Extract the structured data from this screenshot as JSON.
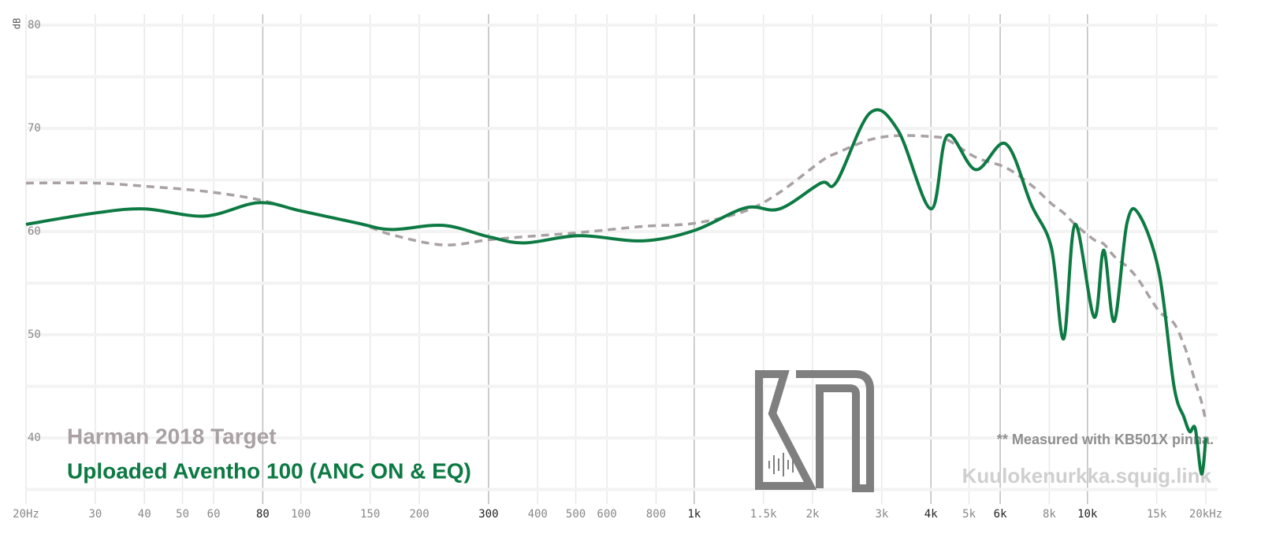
{
  "chart_data": {
    "type": "line",
    "y_label": "dB",
    "log_x": true,
    "xlim": [
      20,
      20000
    ],
    "ylim": [
      34,
      80.5
    ],
    "xticks": [
      {
        "value": 20,
        "label": "20Hz"
      },
      30,
      40,
      50,
      60,
      80,
      100,
      150,
      200,
      300,
      400,
      500,
      600,
      800,
      {
        "value": 1000,
        "label": "1k"
      },
      {
        "value": 1500,
        "label": "1.5k"
      },
      {
        "value": 2000,
        "label": "2k"
      },
      {
        "value": 3000,
        "label": "3k"
      },
      {
        "value": 4000,
        "label": "4k"
      },
      {
        "value": 5000,
        "label": "5k"
      },
      {
        "value": 6000,
        "label": "6k"
      },
      {
        "value": 8000,
        "label": "8k"
      },
      {
        "value": 10000,
        "label": "10k"
      },
      {
        "value": 15000,
        "label": "15k"
      },
      {
        "value": 20000,
        "label": "20kHz"
      }
    ],
    "xticks_emphasized": [
      80,
      300,
      1000,
      4000,
      6000,
      10000
    ],
    "yticks": [
      40,
      50,
      60,
      70,
      80
    ],
    "ygrid_minor": [
      35,
      45,
      55,
      65,
      75
    ],
    "x": [
      20,
      30,
      40,
      57,
      78,
      100,
      140,
      170,
      230,
      300,
      370,
      510,
      740,
      1000,
      1350,
      1650,
      2100,
      2300,
      2800,
      3300,
      4000,
      4400,
      5200,
      6200,
      7200,
      8100,
      8700,
      9300,
      10400,
      11000,
      11700,
      12600,
      13500,
      15200,
      16600,
      17600,
      18200,
      18800,
      19500,
      20000
    ],
    "series": [
      {
        "name": "Harman 2018 Target",
        "color": "#a9a1a3",
        "dashed": true,
        "values": [
          64.7,
          64.7,
          64.4,
          63.9,
          63.1,
          62.0,
          60.8,
          59.7,
          58.7,
          59.2,
          59.5,
          59.9,
          60.5,
          60.8,
          62.0,
          63.8,
          66.8,
          67.6,
          68.9,
          69.3,
          69.2,
          68.9,
          67.2,
          66.2,
          64.5,
          62.7,
          61.8,
          60.7,
          59.2,
          58.8,
          57.6,
          56.6,
          55.3,
          52.3,
          51.1,
          49.0,
          47.3,
          45.4,
          43.5,
          41.6
        ]
      },
      {
        "name": "Uploaded Aventho 100 (ANC ON & EQ)",
        "color": "#0d7a43",
        "dashed": false,
        "values": [
          60.7,
          61.8,
          62.2,
          61.5,
          62.8,
          62.0,
          60.8,
          60.2,
          60.6,
          59.5,
          58.9,
          59.6,
          59.1,
          60.1,
          62.3,
          62.2,
          64.7,
          64.8,
          71.5,
          69.8,
          62.2,
          69.3,
          66.0,
          68.5,
          62.6,
          58.4,
          49.6,
          60.7,
          51.7,
          58.2,
          51.3,
          60.8,
          61.7,
          56.1,
          45.0,
          42.0,
          40.6,
          40.9,
          36.5,
          40.0
        ]
      }
    ],
    "note": "** Measured with KB501X pinna.",
    "watermark": "Kuulokenurkka.squig.link"
  }
}
